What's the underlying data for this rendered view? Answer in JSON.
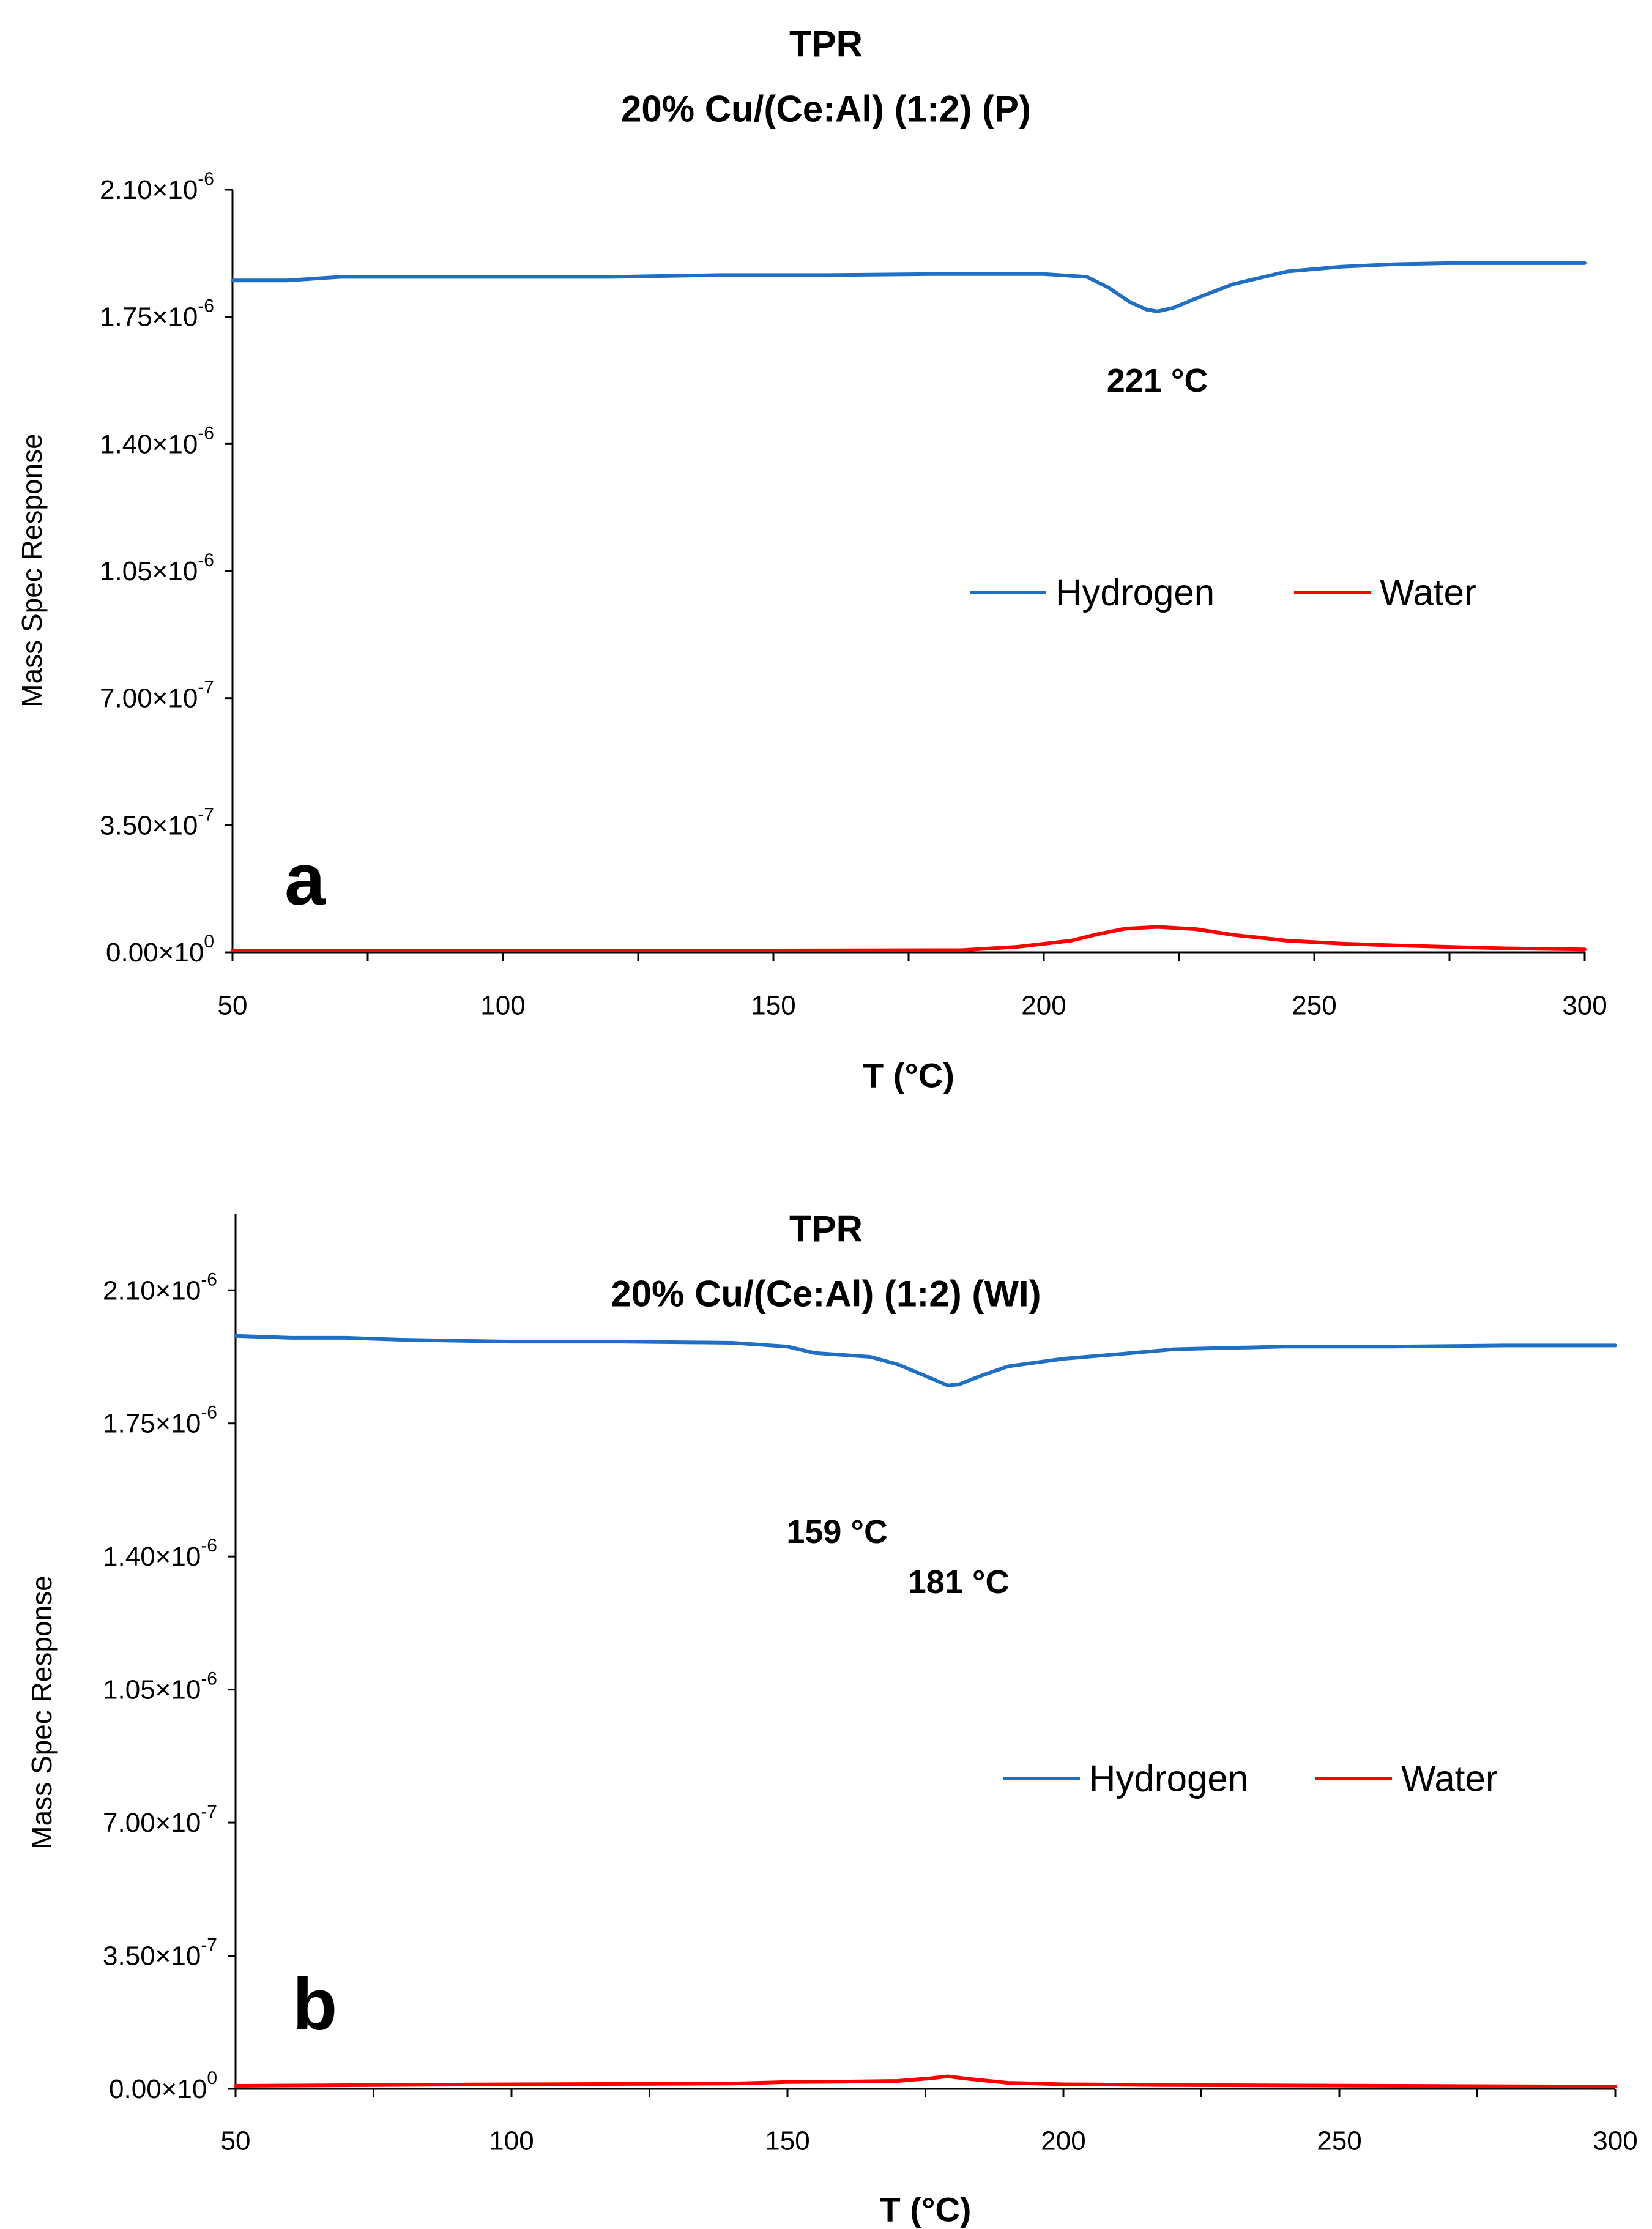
{
  "chart_data": [
    {
      "type": "line",
      "title": "TPR",
      "subtitle": "20% Cu/(Ce:Al) (1:2) (P)",
      "panel_label": "a",
      "xlabel": "T (°C)",
      "ylabel": "Mass Spec Response",
      "xlim": [
        50,
        300
      ],
      "ylim": [
        0,
        2.1e-06
      ],
      "x_ticks": [
        "50",
        "100",
        "150",
        "200",
        "250",
        "300"
      ],
      "y_ticks": [
        {
          "m": "0.00",
          "e": "0"
        },
        {
          "m": "3.50",
          "e": "-7"
        },
        {
          "m": "7.00",
          "e": "-7"
        },
        {
          "m": "1.05",
          "e": "-6"
        },
        {
          "m": "1.40",
          "e": "-6"
        },
        {
          "m": "1.75",
          "e": "-6"
        },
        {
          "m": "2.10",
          "e": "-6"
        }
      ],
      "legend": [
        "Hydrogen",
        "Water"
      ],
      "legend_position": "center-right",
      "colors": {
        "Hydrogen": "#1f6fc4",
        "Water": "#ff0000"
      },
      "annotations": [
        {
          "text": "221 °C",
          "x": 221
        }
      ],
      "series": [
        {
          "name": "Hydrogen",
          "x": [
            50,
            60,
            70,
            80,
            100,
            120,
            140,
            160,
            180,
            200,
            208,
            212,
            216,
            219,
            221,
            224,
            228,
            235,
            245,
            255,
            265,
            275,
            285,
            295,
            300
          ],
          "values": [
            1.85e-06,
            1.85e-06,
            1.86e-06,
            1.86e-06,
            1.86e-06,
            1.86e-06,
            1.865e-06,
            1.865e-06,
            1.868e-06,
            1.868e-06,
            1.86e-06,
            1.83e-06,
            1.79e-06,
            1.77e-06,
            1.765e-06,
            1.775e-06,
            1.8e-06,
            1.84e-06,
            1.875e-06,
            1.888e-06,
            1.895e-06,
            1.898e-06,
            1.898e-06,
            1.898e-06,
            1.898e-06
          ]
        },
        {
          "name": "Water",
          "x": [
            50,
            100,
            150,
            185,
            195,
            205,
            210,
            215,
            221,
            228,
            235,
            245,
            255,
            265,
            275,
            285,
            300
          ],
          "values": [
            5e-09,
            5e-09,
            5e-09,
            6e-09,
            1.5e-08,
            3.2e-08,
            5e-08,
            6.5e-08,
            7e-08,
            6.4e-08,
            4.8e-08,
            3.2e-08,
            2.4e-08,
            1.9e-08,
            1.5e-08,
            1.1e-08,
            8e-09
          ]
        }
      ]
    },
    {
      "type": "line",
      "title": "TPR",
      "subtitle": "20% Cu/(Ce:Al) (1:2) (WI)",
      "panel_label": "b",
      "xlabel": "T (°C)",
      "ylabel": "Mass Spec Response",
      "xlim": [
        50,
        300
      ],
      "ylim": [
        0,
        2.3e-06
      ],
      "x_ticks": [
        "50",
        "100",
        "150",
        "200",
        "250",
        "300"
      ],
      "y_ticks": [
        {
          "m": "0.00",
          "e": "0"
        },
        {
          "m": "3.50",
          "e": "-7"
        },
        {
          "m": "7.00",
          "e": "-7"
        },
        {
          "m": "1.05",
          "e": "-6"
        },
        {
          "m": "1.40",
          "e": "-6"
        },
        {
          "m": "1.75",
          "e": "-6"
        },
        {
          "m": "2.10",
          "e": "-6"
        }
      ],
      "legend": [
        "Hydrogen",
        "Water"
      ],
      "legend_position": "center-right",
      "colors": {
        "Hydrogen": "#1f6fc4",
        "Water": "#ff0000"
      },
      "annotations": [
        {
          "text": "159 °C",
          "x": 159
        },
        {
          "text": "181 °C",
          "x": 181
        }
      ],
      "series": [
        {
          "name": "Hydrogen",
          "x": [
            50,
            60,
            70,
            80,
            100,
            120,
            140,
            150,
            155,
            160,
            165,
            170,
            175,
            179,
            181,
            185,
            190,
            200,
            210,
            220,
            240,
            260,
            280,
            300
          ],
          "values": [
            1.98e-06,
            1.975e-06,
            1.975e-06,
            1.97e-06,
            1.965e-06,
            1.965e-06,
            1.962e-06,
            1.952e-06,
            1.935e-06,
            1.93e-06,
            1.925e-06,
            1.905e-06,
            1.875e-06,
            1.85e-06,
            1.852e-06,
            1.875e-06,
            1.9e-06,
            1.92e-06,
            1.932e-06,
            1.945e-06,
            1.952e-06,
            1.952e-06,
            1.955e-06,
            1.955e-06
          ]
        },
        {
          "name": "Water",
          "x": [
            50,
            100,
            140,
            150,
            160,
            170,
            176,
            179,
            183,
            190,
            200,
            220,
            260,
            300
          ],
          "values": [
            8e-09,
            1.2e-08,
            1.4e-08,
            1.8e-08,
            1.9e-08,
            2.1e-08,
            2.8e-08,
            3.3e-08,
            2.6e-08,
            1.6e-08,
            1.2e-08,
            1e-08,
            8e-09,
            6e-09
          ]
        }
      ]
    }
  ]
}
